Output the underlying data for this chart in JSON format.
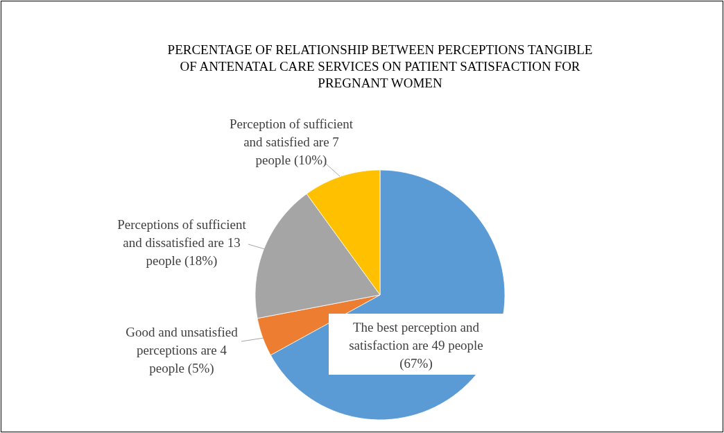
{
  "chart_data": {
    "type": "pie",
    "title": "PERCENTAGE OF RELATIONSHIP BETWEEN PERCEPTIONS TANGIBLE OF ANTENATAL CARE SERVICES ON PATIENT SATISFACTION FOR PREGNANT WOMEN",
    "categories": [
      "The best perception and satisfaction are 49 people (67%)",
      "Good and unsatisfied perceptions are 4 people (5%)",
      "Perceptions of sufficient and dissatisfied are 13 people (18%)",
      "Perception of sufficient and satisfied are 7 people (10%)"
    ],
    "values": [
      67,
      5,
      18,
      10
    ],
    "colors": [
      "#5b9bd5",
      "#ed7d31",
      "#a5a5a5",
      "#ffc000"
    ]
  }
}
